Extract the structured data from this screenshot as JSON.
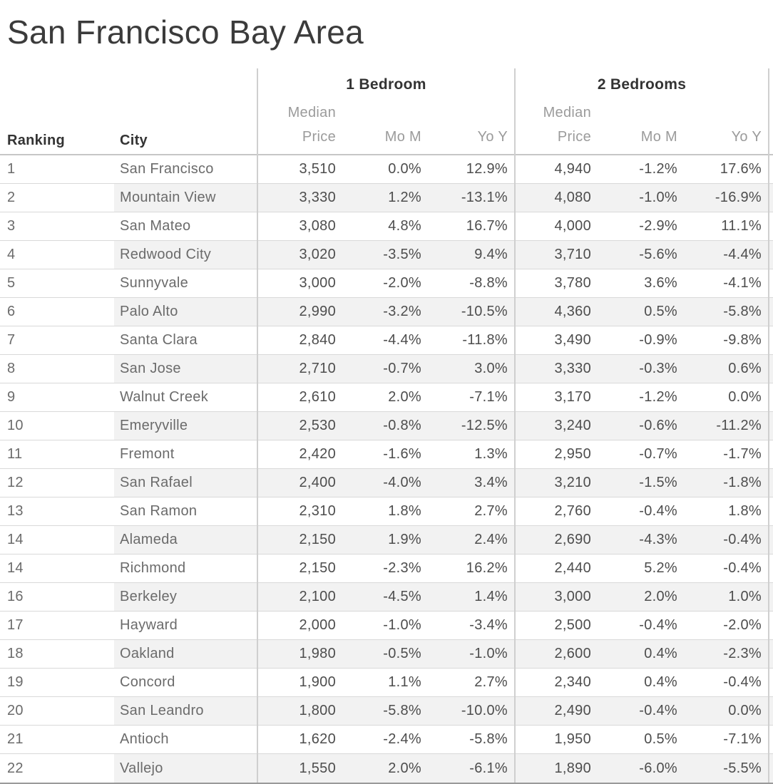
{
  "title": "San Francisco Bay Area",
  "header": {
    "ranking": "Ranking",
    "city": "City",
    "groups": [
      {
        "label": "1 Bedroom",
        "price": "Median Price",
        "mom": "Mo M",
        "yoy": "Yo Y"
      },
      {
        "label": "2 Bedrooms",
        "price": "Median Price",
        "mom": "Mo M",
        "yoy": "Yo Y"
      }
    ]
  },
  "chart_data": {
    "type": "table",
    "title": "San Francisco Bay Area",
    "column_groups": [
      "1 Bedroom",
      "2 Bedrooms"
    ],
    "columns": [
      "Ranking",
      "City",
      "1 Bedroom Median Price",
      "1 Bedroom Mo M",
      "1 Bedroom Yo Y",
      "2 Bedrooms Median Price",
      "2 Bedrooms Mo M",
      "2 Bedrooms Yo Y"
    ],
    "rows": [
      [
        "1",
        "San Francisco",
        "3,510",
        "0.0%",
        "12.9%",
        "4,940",
        "-1.2%",
        "17.6%"
      ],
      [
        "2",
        "Mountain View",
        "3,330",
        "1.2%",
        "-13.1%",
        "4,080",
        "-1.0%",
        "-16.9%"
      ],
      [
        "3",
        "San Mateo",
        "3,080",
        "4.8%",
        "16.7%",
        "4,000",
        "-2.9%",
        "11.1%"
      ],
      [
        "4",
        "Redwood City",
        "3,020",
        "-3.5%",
        "9.4%",
        "3,710",
        "-5.6%",
        "-4.4%"
      ],
      [
        "5",
        "Sunnyvale",
        "3,000",
        "-2.0%",
        "-8.8%",
        "3,780",
        "3.6%",
        "-4.1%"
      ],
      [
        "6",
        "Palo Alto",
        "2,990",
        "-3.2%",
        "-10.5%",
        "4,360",
        "0.5%",
        "-5.8%"
      ],
      [
        "7",
        "Santa Clara",
        "2,840",
        "-4.4%",
        "-11.8%",
        "3,490",
        "-0.9%",
        "-9.8%"
      ],
      [
        "8",
        "San Jose",
        "2,710",
        "-0.7%",
        "3.0%",
        "3,330",
        "-0.3%",
        "0.6%"
      ],
      [
        "9",
        "Walnut Creek",
        "2,610",
        "2.0%",
        "-7.1%",
        "3,170",
        "-1.2%",
        "0.0%"
      ],
      [
        "10",
        "Emeryville",
        "2,530",
        "-0.8%",
        "-12.5%",
        "3,240",
        "-0.6%",
        "-11.2%"
      ],
      [
        "11",
        "Fremont",
        "2,420",
        "-1.6%",
        "1.3%",
        "2,950",
        "-0.7%",
        "-1.7%"
      ],
      [
        "12",
        "San Rafael",
        "2,400",
        "-4.0%",
        "3.4%",
        "3,210",
        "-1.5%",
        "-1.8%"
      ],
      [
        "13",
        "San Ramon",
        "2,310",
        "1.8%",
        "2.7%",
        "2,760",
        "-0.4%",
        "1.8%"
      ],
      [
        "14",
        "Alameda",
        "2,150",
        "1.9%",
        "2.4%",
        "2,690",
        "-4.3%",
        "-0.4%"
      ],
      [
        "14",
        "Richmond",
        "2,150",
        "-2.3%",
        "16.2%",
        "2,440",
        "5.2%",
        "-0.4%"
      ],
      [
        "16",
        "Berkeley",
        "2,100",
        "-4.5%",
        "1.4%",
        "3,000",
        "2.0%",
        "1.0%"
      ],
      [
        "17",
        "Hayward",
        "2,000",
        "-1.0%",
        "-3.4%",
        "2,500",
        "-0.4%",
        "-2.0%"
      ],
      [
        "18",
        "Oakland",
        "1,980",
        "-0.5%",
        "-1.0%",
        "2,600",
        "0.4%",
        "-2.3%"
      ],
      [
        "19",
        "Concord",
        "1,900",
        "1.1%",
        "2.7%",
        "2,340",
        "0.4%",
        "-0.4%"
      ],
      [
        "20",
        "San Leandro",
        "1,800",
        "-5.8%",
        "-10.0%",
        "2,490",
        "-0.4%",
        "0.0%"
      ],
      [
        "21",
        "Antioch",
        "1,620",
        "-2.4%",
        "-5.8%",
        "1,950",
        "0.5%",
        "-7.1%"
      ],
      [
        "22",
        "Vallejo",
        "1,550",
        "2.0%",
        "-6.1%",
        "1,890",
        "-6.0%",
        "-5.5%"
      ]
    ]
  },
  "colors": {
    "stripe": "#f2f2f2",
    "row_line": "#d9d9d9",
    "divider": "#cfcfcf",
    "header_line": "#c6c6c6",
    "bottom_line": "#9a9a9a",
    "title_text": "#3b3b3b",
    "header_text": "#333333",
    "subheader_text": "#9b9b9b",
    "label_text": "#6b6b6b",
    "value_text": "#4d4d4d"
  }
}
